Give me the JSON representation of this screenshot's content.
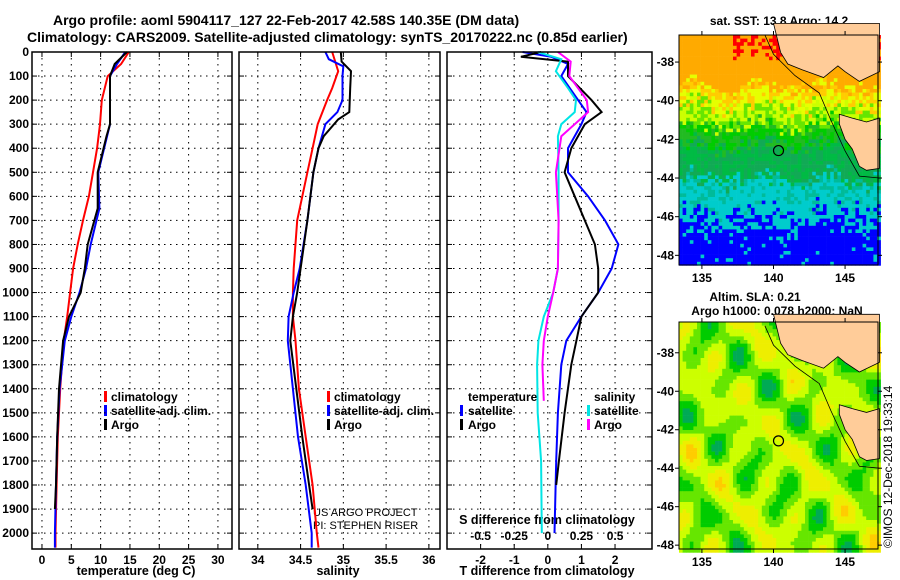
{
  "title": {
    "line1": "Argo profile: aoml 5904117_127 22-Feb-2017 42.58S 140.35E (DM data)",
    "line2": "Climatology: CARS2009. Satellite-adjusted climatology: synTS_20170222.nc (0.85d earlier)"
  },
  "colors": {
    "climatology": "#ff0000",
    "satellite": "#0000ff",
    "argo": "#000000",
    "sal_satellite": "#00e5e5",
    "sal_argo": "#ff00ff",
    "land": "#ffcc99"
  },
  "chart_data": [
    {
      "type": "line",
      "name": "temperature-profile",
      "xlabel": "temperature (deg C)",
      "ylabel": "depth",
      "xlim": [
        -1.7,
        32.4
      ],
      "ylim": [
        2066,
        0
      ],
      "xticks": [
        0,
        5,
        10,
        15,
        20,
        25,
        30
      ],
      "yticks": [
        0,
        100,
        200,
        300,
        400,
        500,
        600,
        700,
        800,
        900,
        1000,
        1100,
        1200,
        1300,
        1400,
        1500,
        1600,
        1700,
        1800,
        1900,
        2000
      ],
      "grid": true,
      "legend": {
        "placement": "center-left",
        "entries": [
          "climatology",
          "satellite-adj. clim.",
          "Argo"
        ]
      },
      "series": [
        {
          "name": "climatology",
          "color": "#ff0000",
          "points": [
            [
              0,
              14.8
            ],
            [
              50,
              13.5
            ],
            [
              100,
              11.2
            ],
            [
              200,
              10.2
            ],
            [
              300,
              9.9
            ],
            [
              400,
              9.4
            ],
            [
              500,
              8.7
            ],
            [
              600,
              8.0
            ],
            [
              700,
              7.0
            ],
            [
              800,
              6.1
            ],
            [
              900,
              5.3
            ],
            [
              1000,
              4.8
            ],
            [
              1100,
              4.3
            ],
            [
              1200,
              3.7
            ],
            [
              1400,
              3.1
            ],
            [
              1600,
              2.7
            ],
            [
              1800,
              2.5
            ],
            [
              2000,
              2.3
            ],
            [
              2060,
              2.3
            ]
          ]
        },
        {
          "name": "satellite-adj. clim.",
          "color": "#0000ff",
          "points": [
            [
              0,
              14.2
            ],
            [
              50,
              12.8
            ],
            [
              100,
              11.6
            ],
            [
              300,
              11.6
            ],
            [
              350,
              11.1
            ],
            [
              500,
              9.6
            ],
            [
              650,
              9.8
            ],
            [
              800,
              8.3
            ],
            [
              900,
              7.5
            ],
            [
              1000,
              6.4
            ],
            [
              1100,
              5.0
            ],
            [
              1200,
              3.9
            ],
            [
              1400,
              3.0
            ],
            [
              1600,
              2.6
            ],
            [
              1800,
              2.4
            ],
            [
              2000,
              2.2
            ],
            [
              2060,
              2.2
            ]
          ]
        },
        {
          "name": "Argo",
          "color": "#000000",
          "points": [
            [
              0,
              14.5
            ],
            [
              50,
              12.4
            ],
            [
              100,
              11.6
            ],
            [
              300,
              11.6
            ],
            [
              350,
              11.0
            ],
            [
              500,
              9.5
            ],
            [
              650,
              9.5
            ],
            [
              800,
              7.8
            ],
            [
              900,
              7.3
            ],
            [
              1000,
              6.6
            ],
            [
              1100,
              4.6
            ],
            [
              1200,
              3.6
            ],
            [
              1400,
              2.9
            ],
            [
              1600,
              2.6
            ],
            [
              1800,
              2.4
            ],
            [
              1900,
              2.2
            ]
          ]
        }
      ]
    },
    {
      "type": "line",
      "name": "salinity-profile",
      "xlabel": "salinity",
      "xlim": [
        33.78,
        36.13
      ],
      "ylim": [
        2066,
        0
      ],
      "xticks": [
        34,
        34.5,
        35,
        35.5,
        36
      ],
      "grid": true,
      "legend": {
        "placement": "center-left",
        "entries": [
          "climatology",
          "satellite-adj. clim.",
          "Argo"
        ]
      },
      "annotation": [
        "US ARGO PROJECT",
        "PI: STEPHEN RISER"
      ],
      "series": [
        {
          "name": "climatology",
          "color": "#ff0000",
          "points": [
            [
              0,
              34.87
            ],
            [
              80,
              34.94
            ],
            [
              150,
              34.87
            ],
            [
              200,
              34.81
            ],
            [
              300,
              34.7
            ],
            [
              400,
              34.64
            ],
            [
              500,
              34.58
            ],
            [
              600,
              34.52
            ],
            [
              700,
              34.46
            ],
            [
              900,
              34.42
            ],
            [
              1000,
              34.41
            ],
            [
              1100,
              34.41
            ],
            [
              1200,
              34.44
            ],
            [
              1400,
              34.48
            ],
            [
              1600,
              34.56
            ],
            [
              1800,
              34.64
            ],
            [
              2000,
              34.69
            ],
            [
              2060,
              34.71
            ]
          ]
        },
        {
          "name": "satellite-adj. clim.",
          "color": "#0000ff",
          "points": [
            [
              0,
              34.79
            ],
            [
              30,
              34.83
            ],
            [
              60,
              35.0
            ],
            [
              100,
              34.99
            ],
            [
              200,
              34.99
            ],
            [
              250,
              34.93
            ],
            [
              300,
              34.79
            ],
            [
              400,
              34.71
            ],
            [
              500,
              34.65
            ],
            [
              700,
              34.58
            ],
            [
              900,
              34.49
            ],
            [
              1000,
              34.42
            ],
            [
              1100,
              34.36
            ],
            [
              1200,
              34.35
            ],
            [
              1400,
              34.41
            ],
            [
              1600,
              34.47
            ],
            [
              1800,
              34.56
            ],
            [
              2000,
              34.63
            ],
            [
              2060,
              34.63
            ]
          ]
        },
        {
          "name": "Argo",
          "color": "#000000",
          "points": [
            [
              0,
              34.97
            ],
            [
              40,
              34.98
            ],
            [
              80,
              35.09
            ],
            [
              150,
              35.08
            ],
            [
              250,
              35.07
            ],
            [
              280,
              34.94
            ],
            [
              350,
              34.77
            ],
            [
              400,
              34.71
            ],
            [
              500,
              34.65
            ],
            [
              700,
              34.58
            ],
            [
              900,
              34.5
            ],
            [
              1000,
              34.46
            ],
            [
              1100,
              34.41
            ],
            [
              1200,
              34.38
            ],
            [
              1400,
              34.45
            ],
            [
              1600,
              34.52
            ],
            [
              1800,
              34.6
            ],
            [
              1900,
              34.64
            ]
          ]
        }
      ]
    },
    {
      "type": "line",
      "name": "difference-profile",
      "xlabel": "T difference from climatology",
      "xlabel2": "S difference from climatology",
      "xlim": [
        -3,
        3.1
      ],
      "ylim": [
        2066,
        0
      ],
      "xticks": [
        -2,
        -1,
        0,
        1,
        2
      ],
      "xticks2": [
        "-0.5",
        "-0.25",
        "0",
        "0.25",
        "0.5"
      ],
      "s_per_t": 0.25,
      "grid": true,
      "legend": {
        "placement": "bottom",
        "temperature_title": "temperature",
        "salinity_title": "salinity",
        "entries": [
          "satellite",
          "Argo"
        ]
      },
      "series": [
        {
          "name": "T satellite",
          "kind": "T",
          "color": "#0000ff",
          "points": [
            [
              0,
              -0.75
            ],
            [
              20,
              0.1
            ],
            [
              50,
              0.6
            ],
            [
              100,
              0.4
            ],
            [
              200,
              0.9
            ],
            [
              250,
              1.15
            ],
            [
              300,
              1.0
            ],
            [
              400,
              0.6
            ],
            [
              500,
              0.6
            ],
            [
              600,
              1.2
            ],
            [
              700,
              1.7
            ],
            [
              800,
              2.1
            ],
            [
              900,
              1.9
            ],
            [
              1000,
              1.5
            ],
            [
              1100,
              1.0
            ],
            [
              1200,
              0.55
            ],
            [
              1300,
              0.4
            ],
            [
              1500,
              0.3
            ],
            [
              1700,
              0.25
            ],
            [
              2000,
              0.2
            ]
          ]
        },
        {
          "name": "T Argo",
          "kind": "T",
          "color": "#000000",
          "points": [
            [
              0,
              -0.2
            ],
            [
              20,
              -0.8
            ],
            [
              40,
              0.6
            ],
            [
              100,
              0.6
            ],
            [
              200,
              1.3
            ],
            [
              250,
              1.6
            ],
            [
              300,
              1.1
            ],
            [
              400,
              0.7
            ],
            [
              500,
              0.5
            ],
            [
              600,
              0.8
            ],
            [
              700,
              1.1
            ],
            [
              800,
              1.4
            ],
            [
              900,
              1.5
            ],
            [
              1000,
              1.5
            ],
            [
              1100,
              1.0
            ],
            [
              1200,
              0.85
            ],
            [
              1300,
              0.7
            ],
            [
              1500,
              0.5
            ],
            [
              1700,
              0.33
            ],
            [
              1800,
              0.25
            ]
          ]
        },
        {
          "name": "S satellite",
          "kind": "S",
          "color": "#00e5e5",
          "points": [
            [
              0,
              -0.075
            ],
            [
              30,
              0.1
            ],
            [
              80,
              0.06
            ],
            [
              150,
              0.15
            ],
            [
              200,
              0.21
            ],
            [
              250,
              0.2
            ],
            [
              300,
              0.1
            ],
            [
              350,
              0.075
            ],
            [
              500,
              0.08
            ],
            [
              700,
              0.08
            ],
            [
              900,
              0.075
            ],
            [
              1000,
              0.04
            ],
            [
              1100,
              -0.03
            ],
            [
              1200,
              -0.07
            ],
            [
              1300,
              -0.08
            ],
            [
              1500,
              -0.075
            ],
            [
              1700,
              -0.05
            ],
            [
              2000,
              -0.045
            ]
          ]
        },
        {
          "name": "S Argo",
          "kind": "S",
          "color": "#ff00ff",
          "points": [
            [
              0,
              0.075
            ],
            [
              40,
              0.17
            ],
            [
              100,
              0.16
            ],
            [
              200,
              0.29
            ],
            [
              250,
              0.3
            ],
            [
              300,
              0.2
            ],
            [
              350,
              0.1
            ],
            [
              500,
              0.06
            ],
            [
              700,
              0.08
            ],
            [
              900,
              0.075
            ],
            [
              1000,
              0.04
            ],
            [
              1100,
              0.0
            ],
            [
              1200,
              -0.03
            ],
            [
              1300,
              -0.04
            ],
            [
              1450,
              -0.03
            ]
          ]
        }
      ]
    },
    {
      "type": "heatmap",
      "name": "sst-map",
      "title": "sat. SST: 13.8 Argo: 14.2",
      "xlim": [
        133.4,
        147.3
      ],
      "ylim": [
        -48.5,
        -36.6
      ],
      "xticks": [
        135,
        140,
        145
      ],
      "yticks": [
        -38,
        -40,
        -42,
        -44,
        -46,
        -48
      ],
      "marker": [
        140.35,
        -42.58
      ]
    },
    {
      "type": "heatmap",
      "name": "sla-map",
      "title1": "Altim. SLA: 0.21",
      "title2": "Argo h1000: 0.078 h2000: NaN",
      "xlim": [
        133.4,
        147.3
      ],
      "ylim": [
        -48.2,
        -36.4
      ],
      "xticks": [
        135,
        140,
        145
      ],
      "yticks": [
        -38,
        -40,
        -42,
        -44,
        -46,
        -48
      ],
      "marker": [
        140.35,
        -42.58
      ]
    }
  ],
  "credit": "©IMOS 12-Dec-2018 19:33:14"
}
